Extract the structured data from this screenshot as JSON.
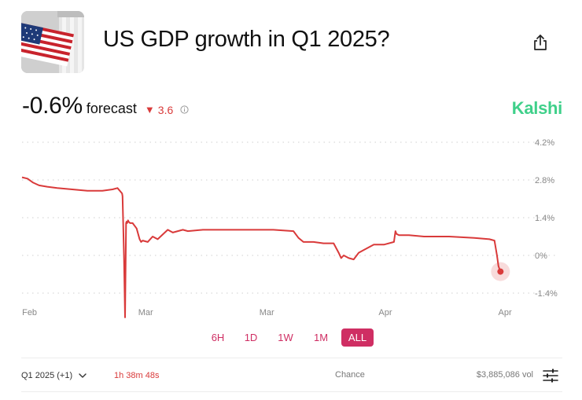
{
  "header": {
    "title": "US GDP growth in Q1 2025?",
    "thumbnail_icon": "us-flag-building-image",
    "share_icon": "share-icon"
  },
  "summary": {
    "value": "-0.6%",
    "forecast_label": "forecast",
    "change_direction": "down",
    "change": "3.6",
    "info_icon": "info-icon",
    "brand": "Kalshi"
  },
  "colors": {
    "line": "#d93a3a",
    "brand": "#3fd08a",
    "accent": "#cf2e63",
    "down": "#d93a3a"
  },
  "chart_data": {
    "type": "line",
    "ylim": [
      -1.4,
      4.2
    ],
    "y_ticks": [
      4.2,
      2.8,
      1.4,
      0,
      -1.4
    ],
    "y_tick_labels": [
      "4.2%",
      "2.8%",
      "1.4%",
      "0%",
      "-1.4%"
    ],
    "x_tick_labels": [
      "Feb",
      "Mar",
      "Mar",
      "Apr",
      "Apr"
    ],
    "x_tick_positions": [
      0.015,
      0.246,
      0.487,
      0.723,
      0.961
    ],
    "grid": true,
    "series": [
      {
        "x": [
          0,
          0.011,
          0.022,
          0.034,
          0.05,
          0.07,
          0.1,
          0.13,
          0.16,
          0.18,
          0.19,
          0.199,
          0.2,
          0.203,
          0.205,
          0.207,
          0.208,
          0.209,
          0.211,
          0.212,
          0.215,
          0.22,
          0.228,
          0.234,
          0.237,
          0.24,
          0.25,
          0.26,
          0.27,
          0.29,
          0.3,
          0.31,
          0.32,
          0.33,
          0.36,
          0.4,
          0.45,
          0.5,
          0.54,
          0.55,
          0.56,
          0.58,
          0.6,
          0.62,
          0.63,
          0.635,
          0.64,
          0.65,
          0.66,
          0.67,
          0.68,
          0.7,
          0.72,
          0.74,
          0.743,
          0.745,
          0.75,
          0.77,
          0.8,
          0.85,
          0.9,
          0.93,
          0.94,
          0.945,
          0.948,
          0.952
        ],
        "values": [
          2.9,
          2.85,
          2.7,
          2.6,
          2.55,
          2.5,
          2.45,
          2.4,
          2.4,
          2.45,
          2.5,
          2.3,
          2.2,
          -0.1,
          -2.3,
          1.2,
          1.25,
          1.2,
          1.3,
          1.25,
          1.2,
          1.2,
          1.0,
          0.6,
          0.5,
          0.55,
          0.5,
          0.7,
          0.6,
          0.95,
          0.85,
          0.9,
          0.95,
          0.9,
          0.95,
          0.95,
          0.95,
          0.95,
          0.9,
          0.65,
          0.5,
          0.5,
          0.45,
          0.45,
          0.1,
          -0.1,
          0.0,
          -0.1,
          -0.15,
          0.1,
          0.2,
          0.4,
          0.4,
          0.5,
          0.9,
          0.8,
          0.75,
          0.75,
          0.7,
          0.7,
          0.65,
          0.6,
          0.55,
          0.0,
          -0.4,
          -0.6
        ]
      }
    ]
  },
  "time_ranges": [
    {
      "label": "6H",
      "active": false
    },
    {
      "label": "1D",
      "active": false
    },
    {
      "label": "1W",
      "active": false
    },
    {
      "label": "1M",
      "active": false
    },
    {
      "label": "ALL",
      "active": true
    }
  ],
  "footer": {
    "contract": "Q1 2025 (+1)",
    "chevron_icon": "chevron-down-icon",
    "countdown": "1h 38m 48s",
    "chance_label": "Chance",
    "volume": "$3,885,086 vol",
    "settings_icon": "sliders-icon"
  }
}
